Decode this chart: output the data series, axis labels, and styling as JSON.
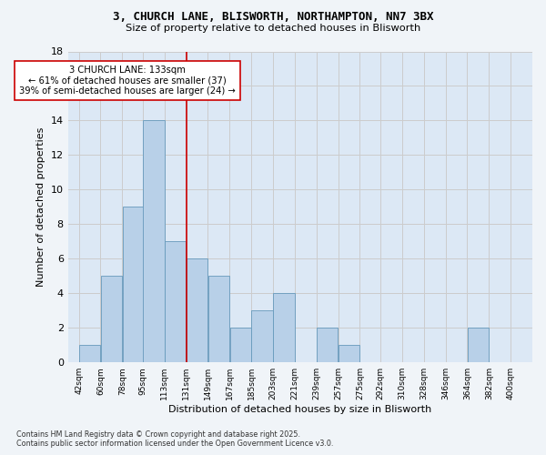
{
  "title_line1": "3, CHURCH LANE, BLISWORTH, NORTHAMPTON, NN7 3BX",
  "title_line2": "Size of property relative to detached houses in Blisworth",
  "xlabel": "Distribution of detached houses by size in Blisworth",
  "ylabel": "Number of detached properties",
  "bar_color": "#b8d0e8",
  "bar_edge_color": "#6699bb",
  "bar_left_edges": [
    42,
    60,
    78,
    95,
    113,
    131,
    149,
    167,
    185,
    203,
    221,
    239,
    257,
    275,
    292,
    310,
    328,
    346,
    364,
    382
  ],
  "bar_heights": [
    1,
    5,
    9,
    14,
    7,
    6,
    5,
    2,
    3,
    4,
    0,
    2,
    1,
    0,
    0,
    0,
    0,
    0,
    2,
    0
  ],
  "bin_width": 18,
  "x_tick_labels": [
    "42sqm",
    "60sqm",
    "78sqm",
    "95sqm",
    "113sqm",
    "131sqm",
    "149sqm",
    "167sqm",
    "185sqm",
    "203sqm",
    "221sqm",
    "239sqm",
    "257sqm",
    "275sqm",
    "292sqm",
    "310sqm",
    "328sqm",
    "346sqm",
    "364sqm",
    "382sqm",
    "400sqm"
  ],
  "x_tick_positions": [
    42,
    60,
    78,
    95,
    113,
    131,
    149,
    167,
    185,
    203,
    221,
    239,
    257,
    275,
    292,
    310,
    328,
    346,
    364,
    382,
    400
  ],
  "property_line_x": 131,
  "property_line_color": "#cc0000",
  "annotation_text": "3 CHURCH LANE: 133sqm\n← 61% of detached houses are smaller (37)\n39% of semi-detached houses are larger (24) →",
  "annotation_box_color": "#ffffff",
  "annotation_box_edge": "#cc0000",
  "ylim": [
    0,
    18
  ],
  "yticks": [
    0,
    2,
    4,
    6,
    8,
    10,
    12,
    14,
    16,
    18
  ],
  "xlim_left": 33,
  "xlim_right": 418,
  "grid_color": "#cccccc",
  "background_color": "#dce8f5",
  "fig_background": "#f0f4f8",
  "footer_line1": "Contains HM Land Registry data © Crown copyright and database right 2025.",
  "footer_line2": "Contains public sector information licensed under the Open Government Licence v3.0."
}
